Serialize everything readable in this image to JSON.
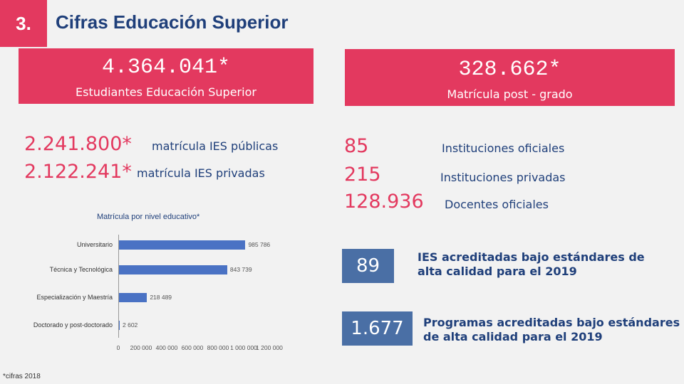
{
  "header": {
    "section_number": "3.",
    "title": "Cifras Educación Superior"
  },
  "banners": [
    {
      "value": "4.364.041*",
      "label": "Estudiantes Educación Superior"
    },
    {
      "value": "328.662*",
      "label": "Matrícula post - grado"
    }
  ],
  "left_stats": [
    {
      "value": "2.241.800*",
      "label": "matrícula IES públicas"
    },
    {
      "value": "2.122.241*",
      "label": "matrícula IES privadas"
    }
  ],
  "right_stats": [
    {
      "value": "85",
      "label": "Instituciones oficiales"
    },
    {
      "value": "215",
      "label": "Instituciones privadas"
    },
    {
      "value": "128.936",
      "label": "Docentes oficiales"
    }
  ],
  "accreditation": [
    {
      "value": "89",
      "label_line1": "IES acreditadas bajo estándares de",
      "label_line2": "alta calidad para el 2019"
    },
    {
      "value": "1.677",
      "label_line1": "Programas  acreditadas bajo estándares",
      "label_line2": "de alta calidad para el 2019"
    }
  ],
  "chart_data": {
    "type": "bar",
    "orientation": "horizontal",
    "title": "Matrícula por nivel educativo*",
    "categories": [
      "Universitario",
      "Técnica y Tecnológica",
      "Especialización y Maestría",
      "Doctorado y post-doctorado"
    ],
    "values": [
      985786,
      843739,
      218489,
      2602
    ],
    "value_labels": [
      "985 786",
      "843 739",
      "218 489",
      "2 602"
    ],
    "xlim": [
      0,
      1200000
    ],
    "x_tick_labels": [
      "0",
      "200 000",
      "400 000",
      "600 000",
      "800 000",
      "1 000 000",
      "1 200 000"
    ],
    "grid": false,
    "colors": {
      "bar": "#4a72c4"
    }
  },
  "footnote": "*cifras 2018",
  "colors": {
    "accent": "#e3395f",
    "navy": "#1f3f7a",
    "box_blue": "#4a6fa5"
  }
}
